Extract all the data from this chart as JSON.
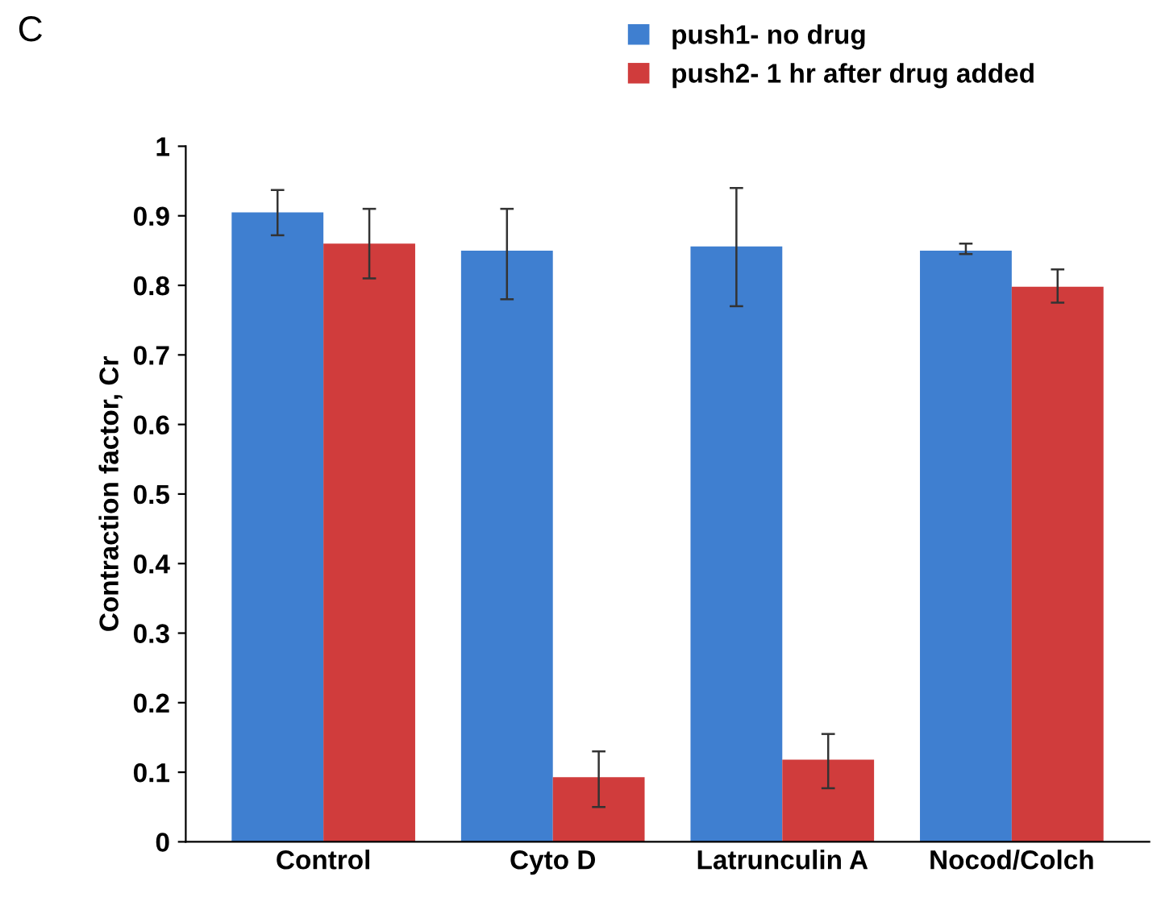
{
  "chart_data": {
    "type": "bar",
    "ylabel": "Contraction factor, Cr",
    "categories": [
      "Control",
      "Cyto D",
      "Latrunculin A",
      "Nocod/Colch"
    ],
    "series": [
      {
        "name": "push1- no drug",
        "color": "#3f7fd0",
        "values": [
          0.905,
          0.85,
          0.856,
          0.85
        ],
        "errors": [
          [
            0.872,
            0.937
          ],
          [
            0.78,
            0.91
          ],
          [
            0.77,
            0.94
          ],
          [
            0.845,
            0.86
          ]
        ]
      },
      {
        "name": "push2- 1 hr after drug added",
        "color": "#d03c3c",
        "values": [
          0.86,
          0.093,
          0.118,
          0.798
        ],
        "errors": [
          [
            0.81,
            0.91
          ],
          [
            0.05,
            0.13
          ],
          [
            0.077,
            0.155
          ],
          [
            0.775,
            0.823
          ]
        ]
      }
    ],
    "ylim": [
      0,
      1
    ],
    "yticks": [
      0,
      0.1,
      0.2,
      0.3,
      0.4,
      0.5,
      0.6,
      0.7,
      0.8,
      0.9,
      1
    ],
    "grid": false,
    "legend": "top right",
    "annotations": [
      "C"
    ]
  }
}
